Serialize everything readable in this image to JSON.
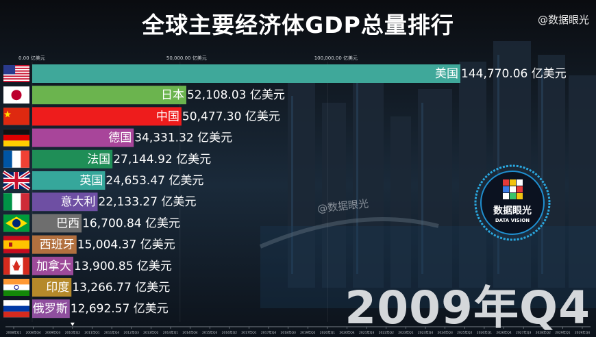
{
  "title": "全球主要经济体GDP总量排行",
  "watermark": "@数据眼光",
  "watermark_mid": "@数据眼光",
  "period": "2009年Q4",
  "logo": {
    "name_cn": "数据眼光",
    "name_en": "DATA VISION"
  },
  "chart_data": {
    "type": "bar",
    "orientation": "horizontal",
    "unit": "亿美元",
    "xlim": [
      0,
      150000
    ],
    "x_ticks": [
      "0.00 亿美元",
      "50,000.00 亿美元",
      "100,000.00 亿美元"
    ],
    "x_tick_values": [
      0,
      50000,
      100000
    ],
    "categories": [
      "美国",
      "日本",
      "中国",
      "德国",
      "法国",
      "英国",
      "意大利",
      "巴西",
      "西班牙",
      "加拿大",
      "印度",
      "俄罗斯"
    ],
    "values": [
      144770.06,
      52108.03,
      50477.3,
      34331.32,
      27144.92,
      24653.47,
      22133.27,
      16700.84,
      15004.37,
      13900.85,
      13266.77,
      12692.57
    ],
    "value_labels": [
      "144,770.06 亿美元",
      "52,108.03 亿美元",
      "50,477.30 亿美元",
      "34,331.32 亿美元",
      "27,144.92 亿美元",
      "24,653.47 亿美元",
      "22,133.27 亿美元",
      "16,700.84 亿美元",
      "15,004.37 亿美元",
      "13,900.85 亿美元",
      "13,266.77 亿美元",
      "12,692.57 亿美元"
    ],
    "colors": [
      "#3fa89a",
      "#6bb44e",
      "#ee1c1c",
      "#a8459a",
      "#1f8e57",
      "#36a79b",
      "#6e4fa3",
      "#6e6e6e",
      "#b2703f",
      "#9d4a9a",
      "#b5892a",
      "#8f4f9e"
    ],
    "flags": [
      "us-flag",
      "japan-flag",
      "china-flag",
      "germany-flag",
      "france-flag",
      "uk-flag",
      "italy-flag",
      "brazil-flag",
      "spain-flag",
      "canada-flag",
      "india-flag",
      "russia-flag"
    ],
    "timeline_ticks": [
      "2008年Q1",
      "2008年Q4",
      "2009年Q3",
      "2010年Q2",
      "2011年Q1",
      "2011年Q4",
      "2012年Q3",
      "2013年Q2",
      "2014年Q1",
      "2014年Q4",
      "2015年Q3",
      "2016年Q2",
      "2017年Q1",
      "2017年Q4",
      "2018年Q3",
      "2019年Q2",
      "2020年Q1",
      "2020年Q4",
      "2021年Q3",
      "2022年Q2",
      "2023年Q1",
      "2023年Q4",
      "2024年Q3",
      "2025年Q2",
      "2026年Q1",
      "2026年Q4",
      "2027年Q3",
      "2028年Q2",
      "2029年Q1",
      "2029年Q4"
    ],
    "timeline_current": 3
  }
}
